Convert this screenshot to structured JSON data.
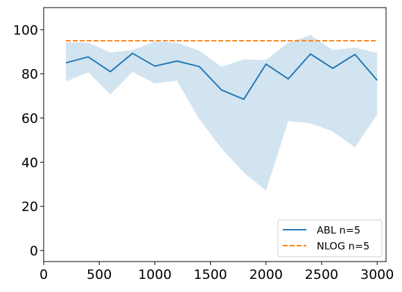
{
  "chart_data": {
    "type": "line",
    "title": "",
    "xlabel": "",
    "ylabel": "",
    "xlim": [
      0,
      3080
    ],
    "ylim": [
      -5,
      110
    ],
    "grid": false,
    "legend_position": "bottom-right",
    "x_ticks": [
      0,
      500,
      1000,
      1500,
      2000,
      2500,
      3000
    ],
    "y_ticks": [
      0,
      20,
      40,
      60,
      80,
      100
    ],
    "series": [
      {
        "name": "ABL n=5",
        "color": "#1f77b4",
        "style": "solid",
        "x": [
          200,
          400,
          600,
          800,
          1000,
          1200,
          1400,
          1600,
          1800,
          2000,
          2200,
          2400,
          2600,
          2800,
          3000
        ],
        "values": [
          85.0,
          87.7,
          81.0,
          89.3,
          83.5,
          85.8,
          83.3,
          72.7,
          68.5,
          84.4,
          77.7,
          89.0,
          82.5,
          88.8,
          77.1
        ],
        "band_upper": [
          94.3,
          94.1,
          89.7,
          90.8,
          94.6,
          94.1,
          90.5,
          83.2,
          86.5,
          86.3,
          94.1,
          97.6,
          90.8,
          91.9,
          89.5
        ],
        "band_lower": [
          76.6,
          80.7,
          70.7,
          80.9,
          75.7,
          76.9,
          59.5,
          46.2,
          35.3,
          27.1,
          58.6,
          57.6,
          53.9,
          46.7,
          61.6
        ],
        "band_color": "#1f77b4",
        "band_opacity": 0.2
      },
      {
        "name": "NLOG n=5",
        "color": "#ff7f0e",
        "style": "dashed",
        "x": [
          200,
          3000
        ],
        "values": [
          95.0,
          95.0
        ]
      }
    ]
  }
}
